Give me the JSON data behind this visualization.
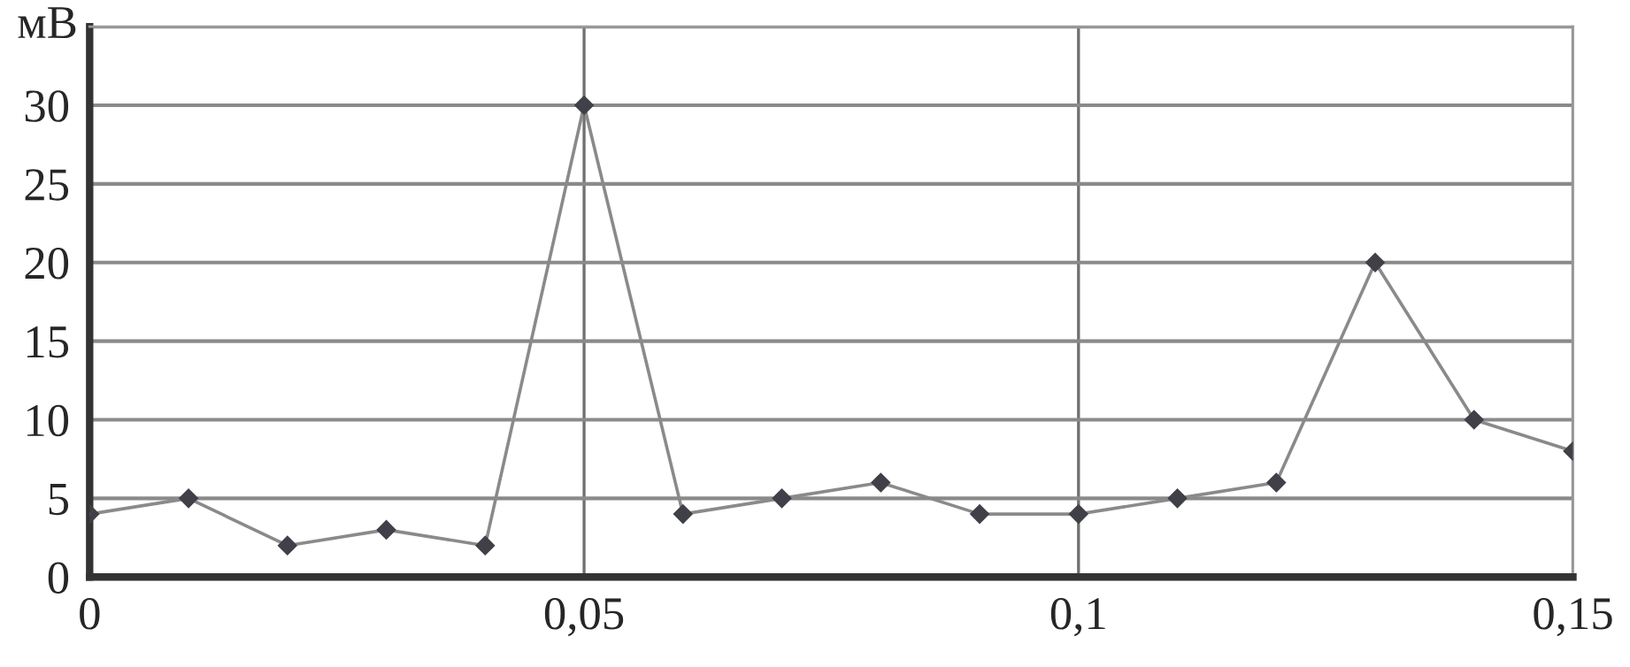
{
  "chart_data": {
    "type": "line",
    "ylabel": "мВ",
    "x": [
      0,
      0.01,
      0.02,
      0.03,
      0.04,
      0.05,
      0.06,
      0.07,
      0.08,
      0.09,
      0.1,
      0.11,
      0.12,
      0.13,
      0.14,
      0.15
    ],
    "series": [
      {
        "color": "#8a8a8a",
        "values": [
          4,
          5,
          2,
          3,
          2,
          30,
          4,
          5,
          6,
          4,
          4,
          5,
          6,
          20,
          10,
          8
        ]
      }
    ],
    "marker": "diamond",
    "line_style": "solid",
    "xlim": [
      0,
      0.15
    ],
    "xticks": [
      {
        "value": 0,
        "label": "0"
      },
      {
        "value": 0.05,
        "label": "0,05"
      },
      {
        "value": 0.1,
        "label": "0,1"
      },
      {
        "value": 0.15,
        "label": "0,15"
      }
    ],
    "ylim": [
      0,
      35
    ],
    "yticks": [
      0,
      5,
      10,
      15,
      20,
      25,
      30,
      {
        "value": 35,
        "label": null
      }
    ],
    "grid": true
  }
}
